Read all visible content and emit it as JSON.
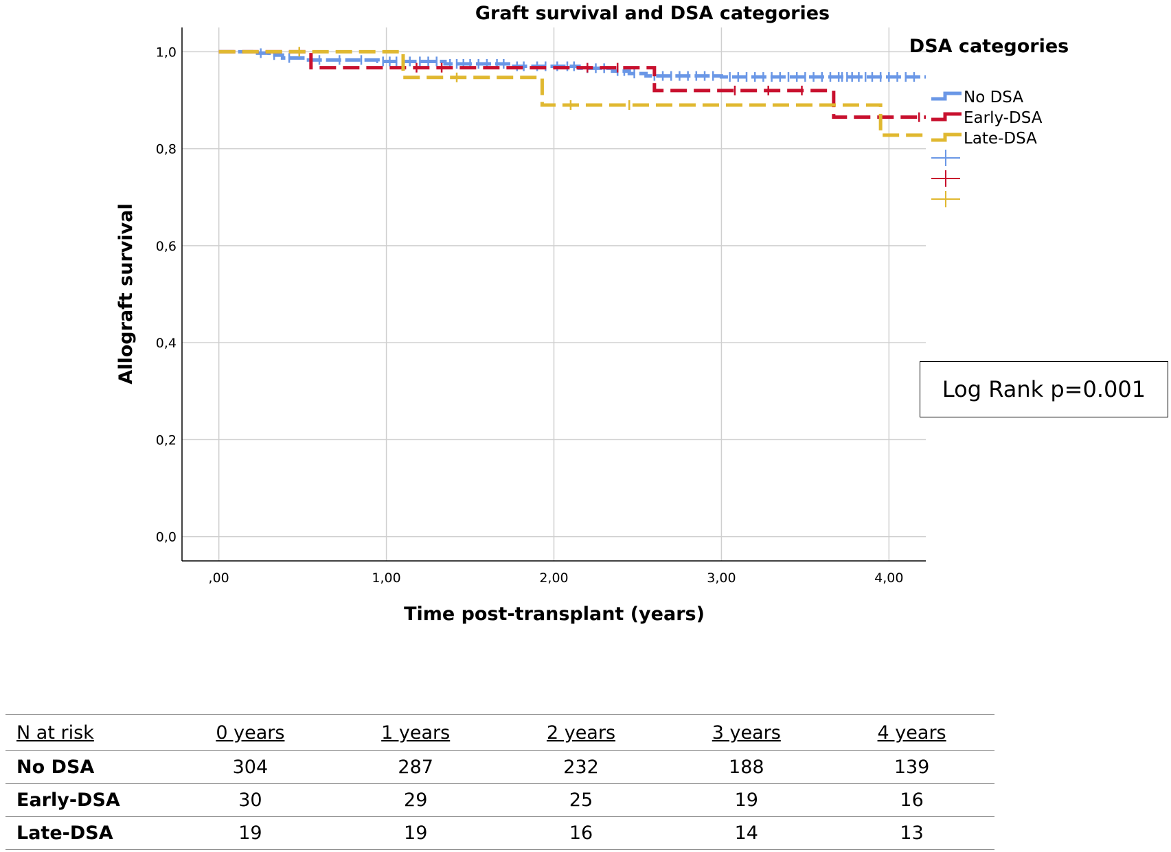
{
  "chart_data": {
    "type": "line",
    "title": "Graft survival and DSA categories",
    "xlabel": "Time post-transplant (years)",
    "ylabel": "Allograft survival",
    "xlim": [
      -0.22,
      4.22
    ],
    "ylim": [
      -0.05,
      1.05
    ],
    "x_ticks": [
      0,
      1,
      2,
      3,
      4
    ],
    "x_tick_labels": [
      ",00",
      "1,00",
      "2,00",
      "3,00",
      "4,00"
    ],
    "y_ticks": [
      0,
      0.2,
      0.4,
      0.6,
      0.8,
      1.0
    ],
    "y_tick_labels": [
      "0,0",
      "0,2",
      "0,4",
      "0,6",
      "0,8",
      "1,0"
    ],
    "grid": true,
    "legend_title": "DSA categories",
    "legend_position": "right",
    "series": [
      {
        "name": "No DSA",
        "color": "#6a97e6",
        "steps": [
          [
            0,
            1.0
          ],
          [
            0.22,
            0.997
          ],
          [
            0.3,
            0.993
          ],
          [
            0.38,
            0.987
          ],
          [
            0.52,
            0.983
          ],
          [
            0.95,
            0.98
          ],
          [
            1.35,
            0.975
          ],
          [
            1.75,
            0.97
          ],
          [
            2.15,
            0.966
          ],
          [
            2.35,
            0.96
          ],
          [
            2.45,
            0.955
          ],
          [
            2.55,
            0.95
          ],
          [
            3.0,
            0.948
          ],
          [
            4.22,
            0.948
          ]
        ],
        "censored": [
          0.25,
          0.33,
          0.42,
          0.6,
          0.72,
          0.85,
          0.98,
          1.02,
          1.06,
          1.1,
          1.14,
          1.2,
          1.25,
          1.3,
          1.38,
          1.42,
          1.46,
          1.5,
          1.55,
          1.6,
          1.66,
          1.7,
          1.78,
          1.82,
          1.9,
          1.95,
          2.02,
          2.08,
          2.12,
          2.2,
          2.25,
          2.3,
          2.38,
          2.42,
          2.48,
          2.6,
          2.65,
          2.7,
          2.75,
          2.8,
          2.85,
          2.9,
          2.95,
          3.05,
          3.1,
          3.15,
          3.2,
          3.25,
          3.3,
          3.35,
          3.4,
          3.45,
          3.5,
          3.55,
          3.6,
          3.65,
          3.7,
          3.72,
          3.75,
          3.78,
          3.82,
          3.86,
          3.9,
          3.95,
          4.0,
          4.05,
          4.1,
          4.15
        ]
      },
      {
        "name": "Early-DSA",
        "color": "#c8102e",
        "steps": [
          [
            0,
            1.0
          ],
          [
            0.55,
            0.967
          ],
          [
            2.6,
            0.92
          ],
          [
            3.67,
            0.865
          ],
          [
            4.22,
            0.865
          ]
        ],
        "censored": [
          1.18,
          1.33,
          2.2,
          2.38,
          3.08,
          3.28,
          3.48,
          4.18
        ]
      },
      {
        "name": "Late-DSA",
        "color": "#e0b830",
        "steps": [
          [
            0,
            1.0
          ],
          [
            1.1,
            0.947
          ],
          [
            1.93,
            0.89
          ],
          [
            3.95,
            0.828
          ],
          [
            4.22,
            0.828
          ]
        ],
        "censored": [
          0.48,
          1.42,
          2.1,
          2.45
        ]
      }
    ]
  },
  "annotation": "Log Rank p=0.001",
  "risk_table": {
    "header": [
      "N at risk",
      "0 years",
      "1 years",
      "2 years",
      "3 years",
      "4 years"
    ],
    "rows": [
      {
        "label": "No DSA",
        "values": [
          "304",
          "287",
          "232",
          "188",
          "139"
        ]
      },
      {
        "label": "Early-DSA",
        "values": [
          "30",
          "29",
          "25",
          "19",
          "16"
        ]
      },
      {
        "label": "Late-DSA",
        "values": [
          "19",
          "19",
          "16",
          "14",
          "13"
        ]
      }
    ]
  }
}
